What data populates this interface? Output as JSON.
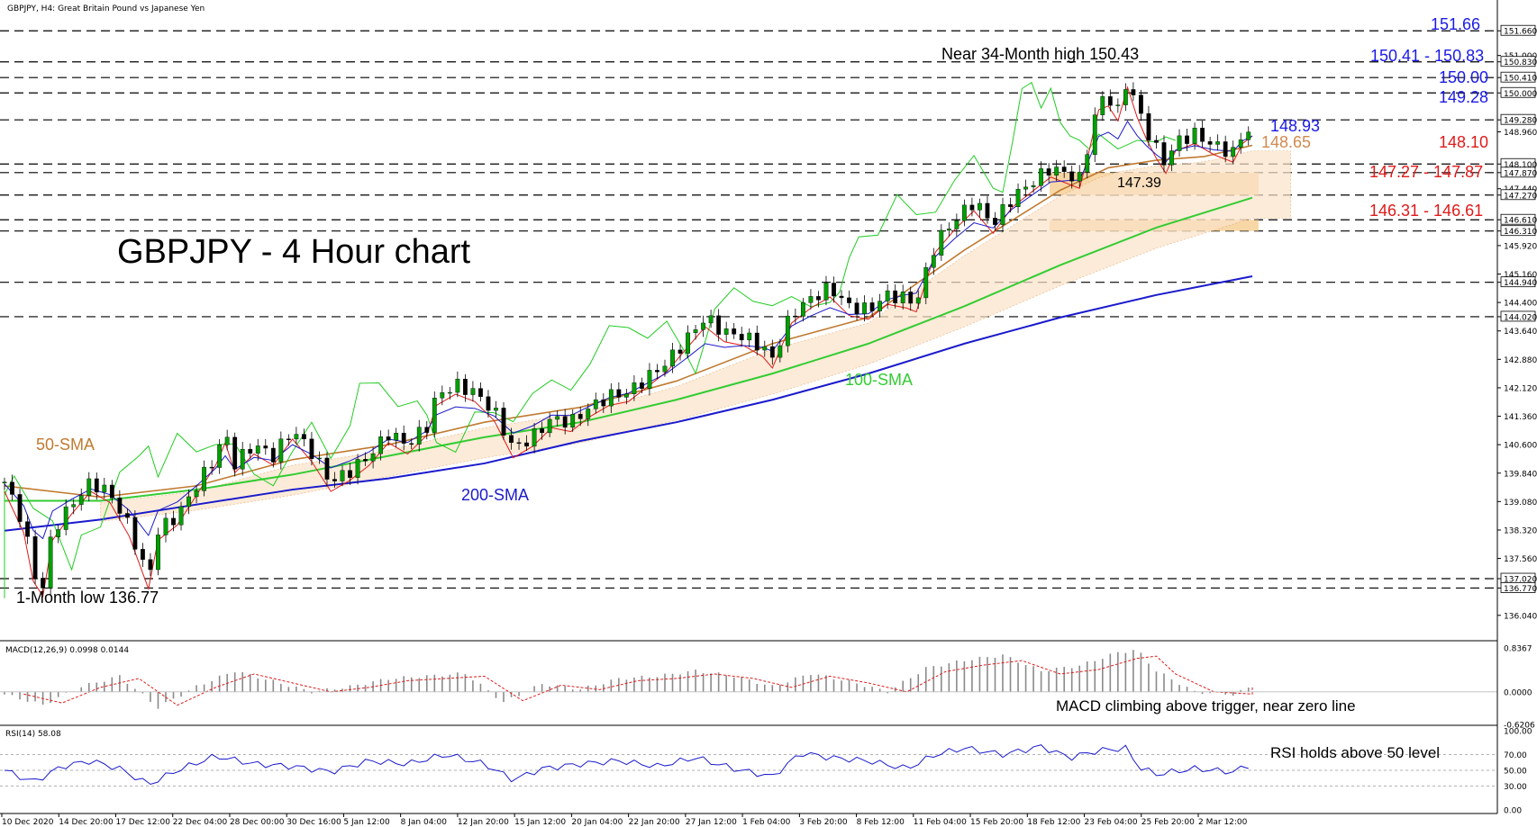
{
  "chart_data": [
    {
      "type": "candlestick",
      "header": "GBPJPY, H4:  Great Britain Pound vs Japanese Yen",
      "title": "GBPJPY - 4 Hour chart",
      "y_ticks": [
        "151.660",
        "151.000",
        "150.830",
        "150.410",
        "150.000",
        "149.280",
        "148.960",
        "148.100",
        "147.870",
        "147.440",
        "147.270",
        "146.610",
        "146.310",
        "145.920",
        "145.160",
        "144.940",
        "144.400",
        "144.020",
        "143.640",
        "142.880",
        "142.120",
        "141.360",
        "140.600",
        "139.840",
        "139.080",
        "138.320",
        "137.560",
        "137.020",
        "136.770",
        "136.040"
      ],
      "ylim": [
        135.65,
        152.05
      ],
      "x_ticks": [
        "10 Dec 2020",
        "14 Dec 20:00",
        "17 Dec 12:00",
        "22 Dec 04:00",
        "28 Dec 00:00",
        "30 Dec 16:00",
        "5 Jan 12:00",
        "8 Jan 04:00",
        "12 Jan 20:00",
        "15 Jan 12:00",
        "20 Jan 04:00",
        "22 Jan 20:00",
        "27 Jan 12:00",
        "1 Feb 04:00",
        "3 Feb 20:00",
        "8 Feb 12:00",
        "11 Feb 04:00",
        "15 Feb 20:00",
        "18 Feb 12:00",
        "23 Feb 04:00",
        "25 Feb 20:00",
        "2 Mar 12:00"
      ],
      "horizontal_levels": [
        151.66,
        150.83,
        150.41,
        150.0,
        149.28,
        148.1,
        147.87,
        147.27,
        146.61,
        146.31,
        144.94,
        144.02,
        137.02,
        136.77
      ],
      "support_zones": [
        [
          147.27,
          147.87
        ],
        [
          146.31,
          146.61
        ]
      ],
      "series": [
        {
          "name": "50-SMA",
          "color": "#c07a30"
        },
        {
          "name": "100-SMA",
          "color": "#33cc33"
        },
        {
          "name": "200-SMA",
          "color": "#1a1acc"
        }
      ],
      "price_path": [
        [
          0,
          139.6
        ],
        [
          2,
          138.5
        ],
        [
          3,
          137.2
        ],
        [
          4,
          136.8
        ],
        [
          5,
          138.3
        ],
        [
          7,
          139.0
        ],
        [
          9,
          139.6
        ],
        [
          11,
          139.3
        ],
        [
          13,
          138.4
        ],
        [
          15,
          137.0
        ],
        [
          16,
          138.3
        ],
        [
          18,
          138.7
        ],
        [
          20,
          139.5
        ],
        [
          22,
          140.3
        ],
        [
          23,
          140.9
        ],
        [
          24,
          140.1
        ],
        [
          26,
          140.6
        ],
        [
          28,
          140.3
        ],
        [
          30,
          141.0
        ],
        [
          32,
          140.4
        ],
        [
          34,
          139.6
        ],
        [
          36,
          139.9
        ],
        [
          38,
          140.3
        ],
        [
          40,
          140.9
        ],
        [
          42,
          140.6
        ],
        [
          44,
          141.1
        ],
        [
          45,
          141.9
        ],
        [
          47,
          142.2
        ],
        [
          49,
          142.0
        ],
        [
          51,
          141.5
        ],
        [
          52,
          141.0
        ],
        [
          53,
          140.5
        ],
        [
          55,
          140.8
        ],
        [
          57,
          141.3
        ],
        [
          59,
          141.2
        ],
        [
          61,
          141.6
        ],
        [
          63,
          141.9
        ],
        [
          65,
          142.0
        ],
        [
          67,
          142.4
        ],
        [
          69,
          142.8
        ],
        [
          71,
          143.4
        ],
        [
          73,
          144.0
        ],
        [
          75,
          143.6
        ],
        [
          77,
          143.5
        ],
        [
          79,
          143.2
        ],
        [
          80,
          142.9
        ],
        [
          82,
          144.1
        ],
        [
          84,
          144.5
        ],
        [
          86,
          144.8
        ],
        [
          88,
          144.3
        ],
        [
          90,
          144.2
        ],
        [
          92,
          144.6
        ],
        [
          94,
          144.5
        ],
        [
          95,
          144.4
        ],
        [
          96,
          145.2
        ],
        [
          97,
          146.0
        ],
        [
          99,
          146.6
        ],
        [
          101,
          147.1
        ],
        [
          103,
          146.5
        ],
        [
          105,
          147.2
        ],
        [
          107,
          147.6
        ],
        [
          109,
          148.0
        ],
        [
          111,
          147.8
        ],
        [
          112,
          147.7
        ],
        [
          113,
          148.7
        ],
        [
          114,
          149.8
        ],
        [
          115,
          149.9
        ],
        [
          116,
          149.5
        ],
        [
          117,
          150.4
        ],
        [
          118,
          149.6
        ],
        [
          119,
          149.0
        ],
        [
          120,
          148.5
        ],
        [
          121,
          148.1
        ],
        [
          122,
          148.7
        ],
        [
          124,
          148.9
        ],
        [
          126,
          148.6
        ],
        [
          128,
          148.4
        ],
        [
          129,
          148.9
        ],
        [
          130,
          149.1
        ]
      ],
      "sma50_path": [
        [
          0,
          139.5
        ],
        [
          10,
          139.2
        ],
        [
          20,
          139.5
        ],
        [
          30,
          140.2
        ],
        [
          40,
          140.6
        ],
        [
          50,
          141.2
        ],
        [
          60,
          141.6
        ],
        [
          70,
          142.3
        ],
        [
          80,
          143.3
        ],
        [
          90,
          144.0
        ],
        [
          100,
          145.8
        ],
        [
          110,
          147.4
        ],
        [
          115,
          148.0
        ],
        [
          120,
          148.2
        ],
        [
          125,
          148.3
        ],
        [
          130,
          148.6
        ]
      ],
      "sma100_path": [
        [
          0,
          139.1
        ],
        [
          10,
          139.1
        ],
        [
          20,
          139.4
        ],
        [
          30,
          139.8
        ],
        [
          40,
          140.3
        ],
        [
          50,
          140.8
        ],
        [
          60,
          141.2
        ],
        [
          70,
          141.8
        ],
        [
          80,
          142.5
        ],
        [
          90,
          143.3
        ],
        [
          100,
          144.3
        ],
        [
          110,
          145.4
        ],
        [
          120,
          146.4
        ],
        [
          130,
          147.2
        ]
      ],
      "sma200_path": [
        [
          0,
          138.3
        ],
        [
          10,
          138.6
        ],
        [
          20,
          139.0
        ],
        [
          30,
          139.4
        ],
        [
          40,
          139.7
        ],
        [
          50,
          140.1
        ],
        [
          60,
          140.7
        ],
        [
          70,
          141.2
        ],
        [
          80,
          141.8
        ],
        [
          90,
          142.5
        ],
        [
          100,
          143.3
        ],
        [
          110,
          144.0
        ],
        [
          120,
          144.6
        ],
        [
          130,
          145.1
        ]
      ],
      "annotations": {
        "high": "Near 34-Month high 150.43",
        "low": "1-Month low 136.77",
        "mid": "147.39",
        "sma50": "50-SMA",
        "sma100": "100-SMA",
        "sma200": "200-SMA",
        "r1": "151.66",
        "r2": "150.41 - 150.83",
        "r3": "150.00",
        "r4": "149.28",
        "k1": "148.93",
        "k2": "148.65",
        "s1": "148.10",
        "s2": "147.27 - 147.87",
        "s3": "146.31 - 146.61"
      }
    },
    {
      "type": "histogram",
      "header": "MACD(12,26,9) 0.0998 0.0144",
      "y_ticks": [
        "0.8367",
        "0.0000",
        "-0.6206"
      ],
      "ylim": [
        -0.6206,
        0.8367
      ],
      "macd_path": [
        [
          0,
          -0.05
        ],
        [
          4,
          -0.25
        ],
        [
          8,
          0.1
        ],
        [
          12,
          0.3
        ],
        [
          16,
          -0.3
        ],
        [
          20,
          0.1
        ],
        [
          24,
          0.4
        ],
        [
          28,
          0.2
        ],
        [
          32,
          0.0
        ],
        [
          36,
          0.1
        ],
        [
          40,
          0.25
        ],
        [
          44,
          0.3
        ],
        [
          48,
          0.35
        ],
        [
          52,
          -0.2
        ],
        [
          56,
          0.15
        ],
        [
          60,
          0.05
        ],
        [
          64,
          0.25
        ],
        [
          68,
          0.3
        ],
        [
          72,
          0.4
        ],
        [
          76,
          0.3
        ],
        [
          80,
          0.1
        ],
        [
          84,
          0.35
        ],
        [
          88,
          0.2
        ],
        [
          92,
          0.0
        ],
        [
          96,
          0.45
        ],
        [
          100,
          0.6
        ],
        [
          104,
          0.7
        ],
        [
          108,
          0.4
        ],
        [
          112,
          0.5
        ],
        [
          116,
          0.75
        ],
        [
          118,
          0.8
        ],
        [
          120,
          0.4
        ],
        [
          124,
          0.0
        ],
        [
          128,
          -0.05
        ],
        [
          130,
          0.1
        ]
      ],
      "annotation": "MACD climbing above trigger, near zero line"
    },
    {
      "type": "line",
      "header": "RSI(14) 58.08",
      "y_ticks": [
        "100.00",
        "70.00",
        "50.00",
        "30.00",
        "0.00"
      ],
      "ylim": [
        0,
        100
      ],
      "rsi_path": [
        [
          0,
          50
        ],
        [
          3,
          35
        ],
        [
          6,
          55
        ],
        [
          9,
          62
        ],
        [
          12,
          52
        ],
        [
          15,
          32
        ],
        [
          18,
          50
        ],
        [
          22,
          68
        ],
        [
          26,
          58
        ],
        [
          30,
          55
        ],
        [
          34,
          48
        ],
        [
          38,
          62
        ],
        [
          42,
          58
        ],
        [
          46,
          70
        ],
        [
          50,
          58
        ],
        [
          53,
          38
        ],
        [
          56,
          52
        ],
        [
          60,
          58
        ],
        [
          64,
          62
        ],
        [
          68,
          55
        ],
        [
          72,
          66
        ],
        [
          76,
          52
        ],
        [
          80,
          42
        ],
        [
          83,
          72
        ],
        [
          86,
          66
        ],
        [
          90,
          62
        ],
        [
          94,
          52
        ],
        [
          97,
          70
        ],
        [
          100,
          78
        ],
        [
          104,
          70
        ],
        [
          108,
          80
        ],
        [
          111,
          66
        ],
        [
          114,
          75
        ],
        [
          117,
          78
        ],
        [
          118,
          55
        ],
        [
          120,
          45
        ],
        [
          124,
          52
        ],
        [
          128,
          48
        ],
        [
          130,
          58
        ]
      ],
      "annotation": "RSI holds above 50 level"
    }
  ]
}
